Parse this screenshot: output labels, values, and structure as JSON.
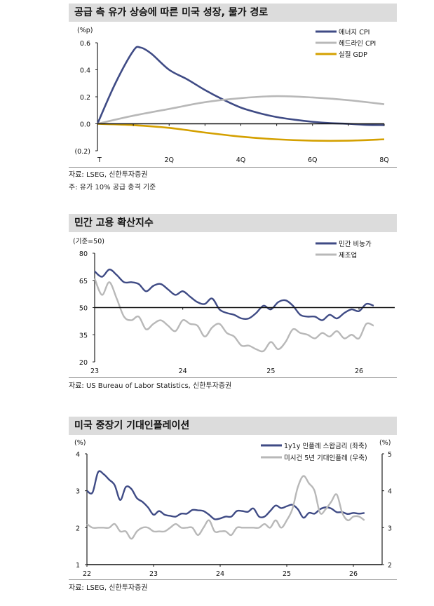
{
  "colors": {
    "navy": "#3f4b85",
    "gray": "#b8b8b8",
    "gold": "#d4a000"
  },
  "chart_data": [
    {
      "type": "line",
      "title": "공급 측 유가 상승에 따른 미국 성장, 물가 경로",
      "unit": "(%p)",
      "ylim": [
        -0.2,
        0.6
      ],
      "yticks": [
        "(0.2)",
        "0.0",
        "0.2",
        "0.4",
        "0.6"
      ],
      "ytick_values": [
        -0.2,
        0,
        0.2,
        0.4,
        0.6
      ],
      "xlim": [
        0,
        8
      ],
      "xticks": [
        "T",
        "2Q",
        "4Q",
        "6Q",
        "8Q"
      ],
      "xtick_values": [
        0,
        2,
        4,
        6,
        8
      ],
      "legend": "top-right",
      "series": [
        {
          "name": "에너지 CPI",
          "color": "#3f4b85",
          "x": [
            0,
            0.5,
            1,
            1.2,
            1.5,
            2,
            2.5,
            3,
            3.5,
            4,
            4.5,
            5,
            5.5,
            6,
            6.5,
            7,
            7.5,
            8
          ],
          "y": [
            0,
            0.3,
            0.54,
            0.565,
            0.52,
            0.4,
            0.33,
            0.25,
            0.18,
            0.12,
            0.08,
            0.05,
            0.03,
            0.015,
            0.005,
            0,
            -0.008,
            -0.01
          ]
        },
        {
          "name": "헤드라인 CPI",
          "color": "#b8b8b8",
          "x": [
            0,
            1,
            2,
            3,
            4,
            5,
            6,
            7,
            8
          ],
          "y": [
            0,
            0.06,
            0.11,
            0.16,
            0.19,
            0.205,
            0.195,
            0.175,
            0.145
          ]
        },
        {
          "name": "실질 GDP",
          "color": "#d4a000",
          "x": [
            0,
            1,
            2,
            3,
            4,
            5,
            6,
            7,
            8
          ],
          "y": [
            0,
            -0.01,
            -0.03,
            -0.065,
            -0.095,
            -0.115,
            -0.125,
            -0.125,
            -0.115
          ]
        }
      ],
      "source": "자료: LSEG, 신한투자증권",
      "note": "주: 유가 10% 공급 충격 기준"
    },
    {
      "type": "line",
      "title": "민간 고용 확산지수",
      "unit": "(기준=50)",
      "ylim": [
        20,
        80
      ],
      "yticks": [
        "20",
        "35",
        "50",
        "65",
        "80"
      ],
      "ytick_values": [
        20,
        35,
        50,
        65,
        80
      ],
      "xlim": [
        2023,
        2026.45
      ],
      "xticks": [
        "23",
        "24",
        "25",
        "26"
      ],
      "xtick_values": [
        2023,
        2024,
        2025,
        2026
      ],
      "reference_line": 50,
      "legend": "top-right",
      "series": [
        {
          "name": "민간 비농가",
          "color": "#3f4b85",
          "start": 2023,
          "step": "monthly",
          "y": [
            70,
            67,
            71,
            68,
            64,
            64,
            63,
            59,
            62,
            63,
            60,
            57,
            59,
            56,
            53,
            52,
            55,
            49,
            47,
            46,
            44,
            44,
            47,
            51,
            49,
            53,
            54,
            51,
            46,
            45,
            45,
            43,
            46,
            44,
            47,
            49,
            48,
            52,
            51
          ]
        },
        {
          "name": "제조업",
          "color": "#b8b8b8",
          "start": 2023,
          "step": "monthly",
          "y": [
            66,
            57,
            64,
            55,
            45,
            43,
            45,
            38,
            41,
            43,
            40,
            37,
            43,
            41,
            40,
            34,
            39,
            41,
            36,
            34,
            29,
            29,
            27,
            26,
            31,
            27,
            31,
            38,
            36,
            35,
            33,
            36,
            34,
            37,
            33,
            35,
            33,
            41,
            40
          ]
        }
      ],
      "source": "자료: US Bureau of Labor Statistics, 신한투자증권"
    },
    {
      "type": "line",
      "title": "미국 중장기 기대인플레이션",
      "unit_left": "(%)",
      "unit_right": "(%)",
      "ylim": [
        1,
        4
      ],
      "yticks": [
        "1",
        "2",
        "3",
        "4"
      ],
      "ytick_values": [
        1,
        2,
        3,
        4
      ],
      "y2lim": [
        2,
        5
      ],
      "y2ticks": [
        "2",
        "3",
        "4",
        "5"
      ],
      "y2tick_values": [
        2,
        3,
        4,
        5
      ],
      "xlim": [
        2022,
        2026.45
      ],
      "xticks": [
        "22",
        "23",
        "24",
        "25",
        "26"
      ],
      "xtick_values": [
        2022,
        2023,
        2024,
        2025,
        2026
      ],
      "legend": "top-right",
      "series": [
        {
          "name": "1y1y 인플레 스왑금리 (좌축)",
          "color": "#3f4b85",
          "axis": "left",
          "start": 2022,
          "step": "monthly",
          "y": [
            3.0,
            2.95,
            3.5,
            3.45,
            3.3,
            3.15,
            2.75,
            3.1,
            3.05,
            2.8,
            2.7,
            2.55,
            2.35,
            2.45,
            2.35,
            2.32,
            2.3,
            2.38,
            2.38,
            2.48,
            2.47,
            2.45,
            2.35,
            2.23,
            2.25,
            2.3,
            2.3,
            2.45,
            2.45,
            2.43,
            2.52,
            2.3,
            2.3,
            2.45,
            2.6,
            2.53,
            2.58,
            2.62,
            2.5,
            2.27,
            2.4,
            2.38,
            2.5,
            2.55,
            2.52,
            2.42,
            2.42,
            2.37,
            2.4,
            2.38,
            2.4
          ]
        },
        {
          "name": "미시건 5년 기대인플레 (우축)",
          "color": "#b8b8b8",
          "axis": "right",
          "start": 2022,
          "step": "monthly",
          "y": [
            3.1,
            3.0,
            3.0,
            3.0,
            3.0,
            3.1,
            2.9,
            2.9,
            2.7,
            2.9,
            3.0,
            3.0,
            2.9,
            2.9,
            2.9,
            3.0,
            3.1,
            3.0,
            3.0,
            3.0,
            2.8,
            3.0,
            3.2,
            2.9,
            2.9,
            2.9,
            2.8,
            3.0,
            3.0,
            3.0,
            3.0,
            3.0,
            3.1,
            3.0,
            3.2,
            3.0,
            3.2,
            3.5,
            4.1,
            4.4,
            4.2,
            4.0,
            3.4,
            3.5,
            3.7,
            3.9,
            3.4,
            3.2,
            3.3,
            3.3,
            3.2
          ]
        }
      ],
      "source": "자료: LSEG, 신한투자증권"
    }
  ]
}
